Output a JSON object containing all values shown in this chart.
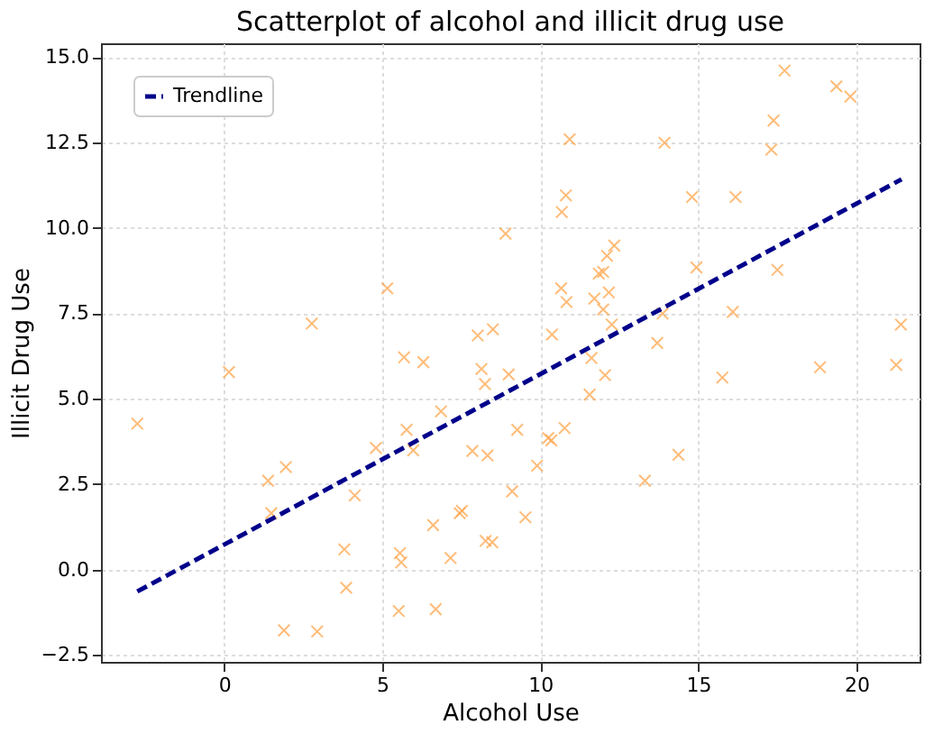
{
  "chart_data": {
    "type": "scatter",
    "title": "Scatterplot of alcohol and illicit drug use",
    "xlabel": "Alcohol Use",
    "ylabel": "Illicit Drug Use",
    "xlim": [
      -3.9,
      22
    ],
    "ylim": [
      -2.7,
      15.4
    ],
    "xticks": [
      0,
      5,
      10,
      15,
      20
    ],
    "yticks": [
      {
        "value": -2.5,
        "label": "−2.5"
      },
      {
        "value": 0,
        "label": "0.0"
      },
      {
        "value": 2.5,
        "label": "2.5"
      },
      {
        "value": 5,
        "label": "5.0"
      },
      {
        "value": 7.5,
        "label": "7.5"
      },
      {
        "value": 10,
        "label": "10.0"
      },
      {
        "value": 12.5,
        "label": "12.5"
      },
      {
        "value": 15,
        "label": "15.0"
      }
    ],
    "grid": true,
    "legend": "top left",
    "series": [
      {
        "color": "#ffa64d",
        "marker": "cross",
        "x": [
          0.15,
          -2.75,
          1.39,
          1.95,
          1.49,
          4.13,
          4.8,
          5.69,
          6.3,
          5.77,
          5.98,
          6.86,
          8.14,
          8.25,
          9.0,
          7.85,
          8.33,
          6.61,
          7.45,
          7.52,
          3.8,
          5.56,
          5.6,
          7.16,
          8.27,
          8.48,
          3.86,
          5.52,
          6.69,
          1.89,
          2.94,
          8.9,
          5.16,
          2.77,
          8.02,
          8.5,
          17.73,
          19.37,
          19.81,
          17.38,
          17.31,
          10.93,
          13.93,
          10.81,
          10.68,
          14.8,
          16.18,
          12.34,
          12.11,
          11.99,
          11.85,
          14.94,
          17.5,
          10.66,
          10.83,
          11.71,
          12.17,
          11.99,
          12.26,
          13.87,
          16.09,
          10.37,
          13.7,
          11.62,
          21.41,
          18.85,
          21.26,
          12.05,
          11.56,
          15.76,
          9.27,
          10.25,
          10.35,
          10.77,
          9.9,
          14.37,
          13.31,
          9.11,
          9.53
        ],
        "values": [
          5.78,
          4.27,
          2.6,
          3.0,
          1.65,
          2.17,
          3.56,
          6.21,
          6.07,
          4.09,
          3.49,
          4.63,
          5.87,
          5.43,
          5.71,
          3.47,
          3.34,
          1.3,
          1.65,
          1.72,
          0.59,
          0.48,
          0.21,
          0.34,
          0.84,
          0.8,
          -0.53,
          -1.21,
          -1.16,
          -1.78,
          -1.81,
          9.83,
          8.23,
          7.2,
          6.85,
          7.03,
          14.6,
          14.14,
          13.84,
          13.14,
          12.29,
          12.59,
          12.49,
          10.95,
          10.46,
          10.9,
          10.9,
          9.48,
          9.18,
          8.71,
          8.66,
          8.84,
          8.77,
          8.23,
          7.83,
          7.93,
          8.11,
          7.61,
          7.17,
          7.49,
          7.54,
          6.88,
          6.63,
          6.19,
          7.17,
          5.92,
          5.99,
          5.69,
          5.12,
          5.62,
          4.09,
          3.85,
          3.78,
          4.14,
          3.04,
          3.36,
          2.6,
          2.29,
          1.53
        ]
      },
      {
        "type": "line",
        "name": "Trendline",
        "color": "#00008b",
        "line_style": "dashed",
        "x": [
          -2.75,
          21.43
        ],
        "values": [
          -0.64,
          11.42
        ]
      }
    ]
  }
}
